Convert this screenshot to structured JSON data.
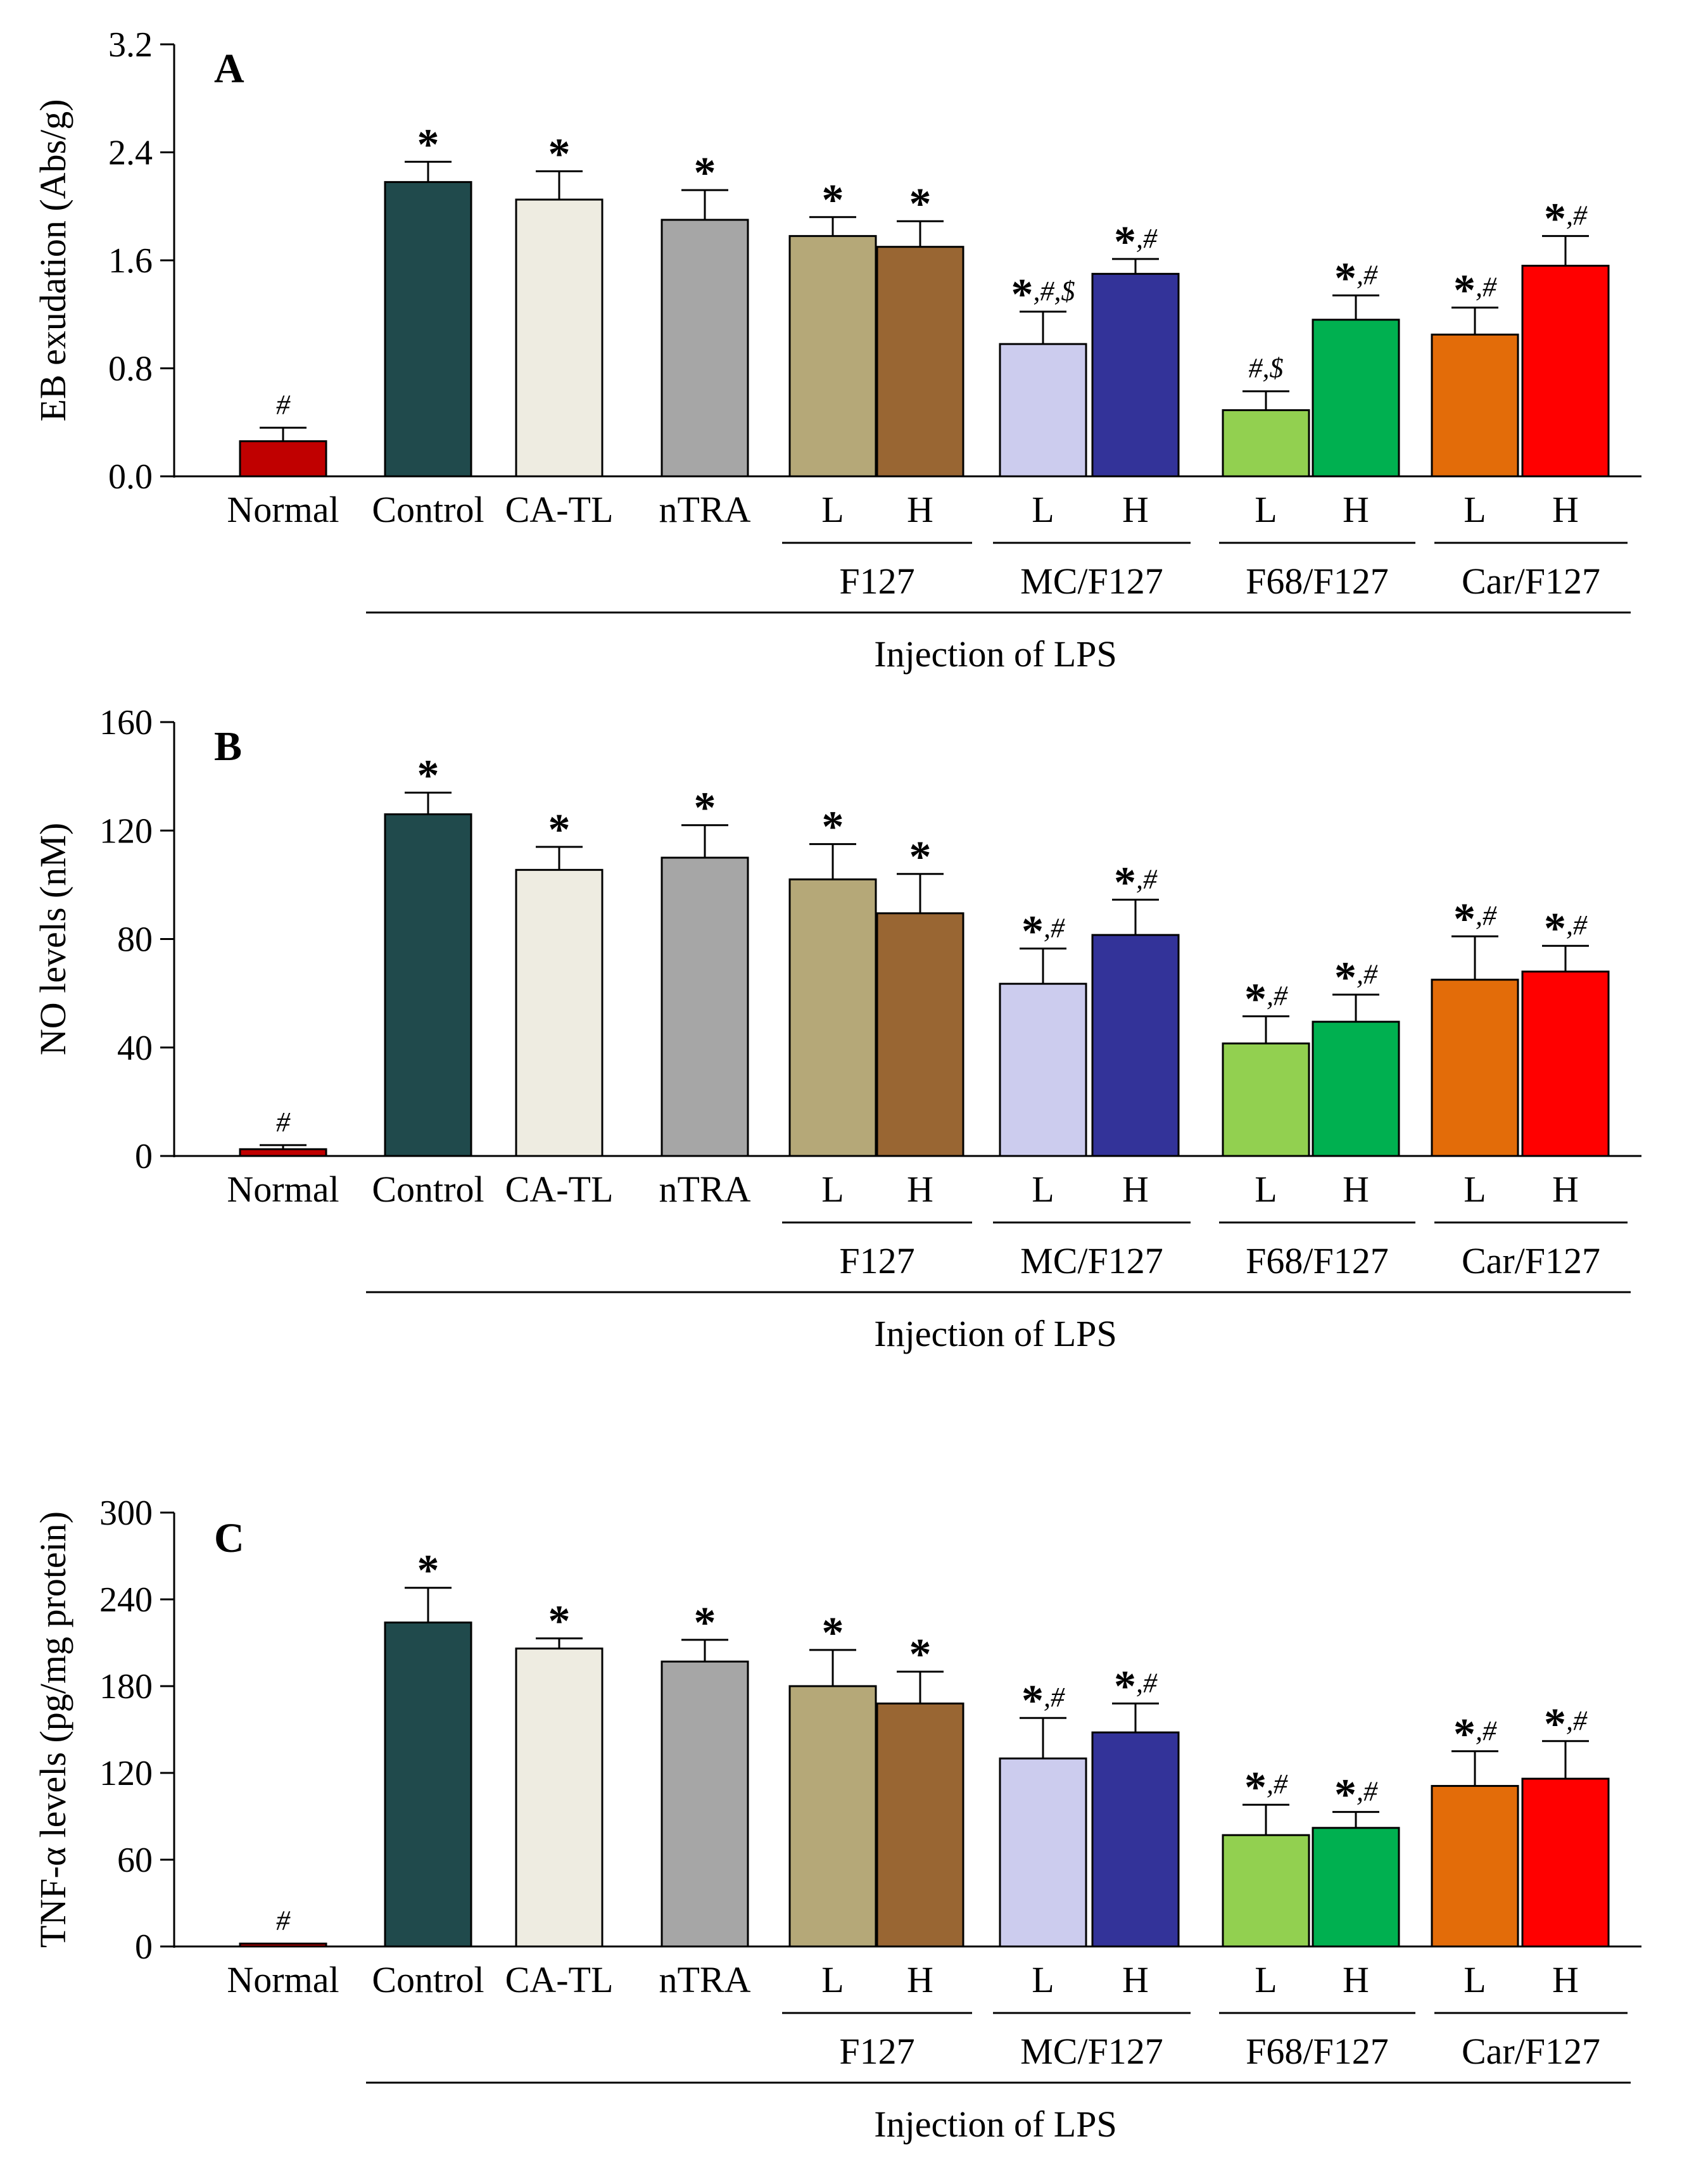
{
  "colors": {
    "Normal": "#c00000",
    "Control": "#204a4c",
    "CA-TL": "#eeece1",
    "nTRA": "#a6a6a6",
    "F127-L": "#b5a878",
    "F127-H": "#996633",
    "MC/F127-L": "#ccccee",
    "MC/F127-H": "#333399",
    "F68/F127-L": "#92d050",
    "F68/F127-H": "#00b050",
    "Car/F127-L": "#e36c09",
    "Car/F127-H": "#ff0000"
  },
  "labels": {
    "single": [
      "Normal",
      "Control",
      "CA-TL",
      "nTRA"
    ],
    "low": "L",
    "high": "H",
    "formulations": [
      "F127",
      "MC/F127",
      "F68/F127",
      "Car/F127"
    ],
    "injection": "Injection of LPS"
  },
  "chart_data": [
    {
      "type": "bar",
      "panel": "A",
      "ylabel": "EB exudation (Abs/g)",
      "ylim": [
        0,
        3.2
      ],
      "yticks": [
        "0.0",
        "0.8",
        "1.6",
        "2.4",
        "3.2"
      ],
      "categories": [
        "Normal",
        "Control",
        "CA-TL",
        "nTRA",
        "F127-L",
        "F127-H",
        "MC/F127-L",
        "MC/F127-H",
        "F68/F127-L",
        "F68/F127-H",
        "Car/F127-L",
        "Car/F127-H"
      ],
      "values": [
        0.26,
        2.18,
        2.05,
        1.9,
        1.78,
        1.7,
        0.98,
        1.5,
        0.49,
        1.16,
        1.05,
        1.56
      ],
      "errors": [
        0.1,
        0.15,
        0.21,
        0.22,
        0.14,
        0.19,
        0.24,
        0.11,
        0.14,
        0.18,
        0.2,
        0.22
      ],
      "significance": [
        [
          "",
          "#"
        ],
        [
          "*",
          ""
        ],
        [
          "*",
          ""
        ],
        [
          "*",
          ""
        ],
        [
          "*",
          ""
        ],
        [
          "*",
          ""
        ],
        [
          "*",
          ",#,$"
        ],
        [
          "*",
          ",#"
        ],
        [
          "",
          "#,$"
        ],
        [
          "*",
          ",#"
        ],
        [
          "*",
          ",#"
        ],
        [
          "*",
          ",#"
        ]
      ]
    },
    {
      "type": "bar",
      "panel": "B",
      "ylabel": "NO levels (nM)",
      "ylim": [
        0,
        160
      ],
      "yticks": [
        "0",
        "40",
        "80",
        "120",
        "160"
      ],
      "categories": [
        "Normal",
        "Control",
        "CA-TL",
        "nTRA",
        "F127-L",
        "F127-H",
        "MC/F127-L",
        "MC/F127-H",
        "F68/F127-L",
        "F68/F127-H",
        "Car/F127-L",
        "Car/F127-H"
      ],
      "values": [
        2.5,
        126,
        105.5,
        110,
        102,
        89.5,
        63.5,
        81.5,
        41.5,
        49.5,
        65,
        68
      ],
      "errors": [
        1.5,
        8,
        8.5,
        12,
        13,
        14.5,
        13,
        13,
        10,
        10,
        16,
        9.5
      ],
      "significance": [
        [
          "",
          "#"
        ],
        [
          "*",
          ""
        ],
        [
          "*",
          ""
        ],
        [
          "*",
          ""
        ],
        [
          "*",
          ""
        ],
        [
          "*",
          ""
        ],
        [
          "*",
          ",#"
        ],
        [
          "*",
          ",#"
        ],
        [
          "*",
          ",#"
        ],
        [
          "*",
          ",#"
        ],
        [
          "*",
          ",#"
        ],
        [
          "*",
          ",#"
        ]
      ]
    },
    {
      "type": "bar",
      "panel": "C",
      "ylabel": "TNF-α levels (pg/mg protein)",
      "ylim": [
        0,
        300
      ],
      "yticks": [
        "0",
        "60",
        "120",
        "180",
        "240",
        "300"
      ],
      "categories": [
        "Normal",
        "Control",
        "CA-TL",
        "nTRA",
        "F127-L",
        "F127-H",
        "MC/F127-L",
        "MC/F127-H",
        "F68/F127-L",
        "F68/F127-H",
        "Car/F127-L",
        "Car/F127-H"
      ],
      "values": [
        2,
        224,
        206,
        197,
        180,
        168,
        130,
        148,
        77,
        82,
        111,
        116
      ],
      "errors": [
        0,
        24,
        7,
        15,
        25,
        22,
        28,
        20,
        21,
        11,
        24,
        26
      ],
      "significance": [
        [
          "",
          "#"
        ],
        [
          "*",
          ""
        ],
        [
          "*",
          ""
        ],
        [
          "*",
          ""
        ],
        [
          "*",
          ""
        ],
        [
          "*",
          ""
        ],
        [
          "*",
          ",#"
        ],
        [
          "*",
          ",#"
        ],
        [
          "*",
          ",#"
        ],
        [
          "*",
          ",#"
        ],
        [
          "*",
          ",#"
        ],
        [
          "*",
          ",#"
        ]
      ]
    }
  ]
}
